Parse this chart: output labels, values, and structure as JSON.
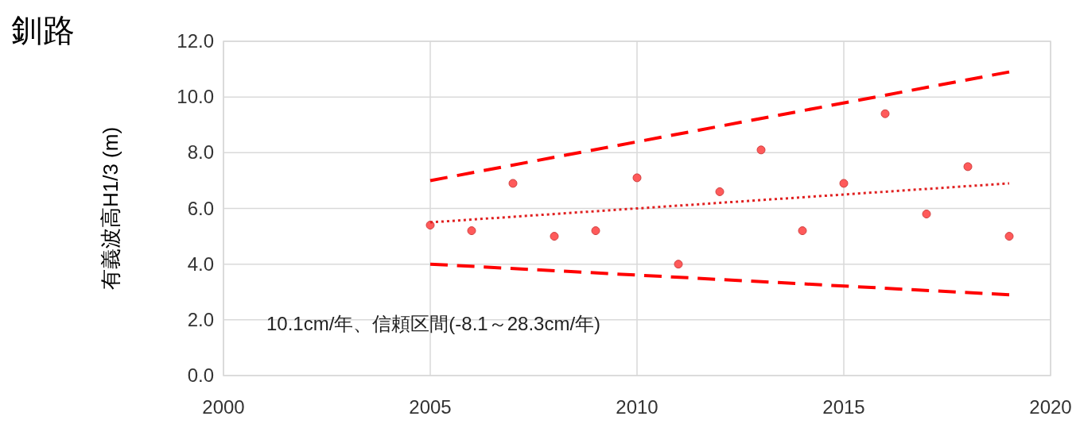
{
  "chart_data": {
    "type": "scatter",
    "title": "釧路",
    "ylabel": "有義波高H1/3 (m)",
    "annotations": [
      "10.1cm/年、信頼区間(-8.1～28.3cm/年)"
    ],
    "xlim": [
      2000,
      2020
    ],
    "xticks": [
      2000,
      2005,
      2010,
      2015,
      2020
    ],
    "ylim": [
      0,
      12
    ],
    "yticks": [
      {
        "value": 0,
        "label": "0.0"
      },
      {
        "value": 2,
        "label": "2.0"
      },
      {
        "value": 4,
        "label": "4.0"
      },
      {
        "value": 6,
        "label": "6.0"
      },
      {
        "value": 8,
        "label": "8.0"
      },
      {
        "value": 10,
        "label": "10.0"
      },
      {
        "value": 12,
        "label": "12.0"
      }
    ],
    "grid": true,
    "series": [
      {
        "marker": "circle",
        "color": "#ff5a5a",
        "x": [
          2005,
          2006,
          2007,
          2008,
          2009,
          2010,
          2011,
          2012,
          2013,
          2014,
          2015,
          2016,
          2017,
          2018,
          2019
        ],
        "values": [
          5.4,
          5.2,
          6.9,
          5.0,
          5.2,
          7.1,
          4.0,
          6.6,
          8.1,
          5.2,
          6.9,
          9.4,
          5.8,
          7.5,
          5.0
        ]
      },
      {
        "type": "line",
        "line_style": "dotted",
        "color": "#e02020",
        "x": [
          2005,
          2019
        ],
        "values": [
          5.5,
          6.9
        ]
      },
      {
        "type": "line",
        "line_style": "dashed",
        "color": "#ff0000",
        "x": [
          2005,
          2019
        ],
        "values": [
          7.0,
          10.9
        ]
      },
      {
        "type": "line",
        "line_style": "dashed",
        "color": "#ff0000",
        "x": [
          2005,
          2019
        ],
        "values": [
          4.0,
          2.9
        ]
      }
    ]
  }
}
